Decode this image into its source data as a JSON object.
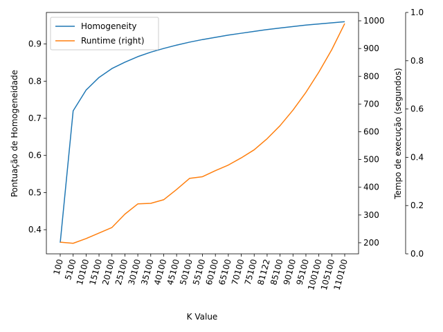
{
  "chart_data": {
    "type": "line",
    "categories": [
      "100",
      "5100",
      "10100",
      "15100",
      "20100",
      "25100",
      "30100",
      "35100",
      "40100",
      "45100",
      "50100",
      "55100",
      "60100",
      "65100",
      "70100",
      "75100",
      "81122",
      "85100",
      "90100",
      "95100",
      "100100",
      "105100",
      "110100"
    ],
    "xlabel": "K Value",
    "ylabel_left": "Pontuação de Homogeneidade",
    "ylabel_right": "Tempo de execução (segundos)",
    "ylim_left": [
      0.335,
      0.985
    ],
    "ylim_right": [
      160,
      1030
    ],
    "ylim_extra": [
      0.0,
      1.0
    ],
    "left_ticks": [
      "0.4",
      "0.5",
      "0.6",
      "0.7",
      "0.8",
      "0.9"
    ],
    "right_ticks": [
      "200",
      "300",
      "400",
      "500",
      "600",
      "700",
      "800",
      "900",
      "1000"
    ],
    "extra_ticks": [
      "0.0",
      "0.2",
      "0.4",
      "0.6",
      "0.8",
      "1.0"
    ],
    "legend_position": "upper-left",
    "series": [
      {
        "name": "Homogeneity",
        "axis": "left",
        "color": "#1f77b4",
        "values": [
          0.365,
          0.72,
          0.776,
          0.81,
          0.834,
          0.851,
          0.866,
          0.878,
          0.888,
          0.897,
          0.905,
          0.912,
          0.918,
          0.924,
          0.929,
          0.934,
          0.939,
          0.943,
          0.947,
          0.951,
          0.954,
          0.957,
          0.96
        ]
      },
      {
        "name": "Runtime (right)",
        "axis": "right",
        "color": "#ff7f0e",
        "values": [
          202,
          198,
          215,
          235,
          255,
          303,
          340,
          342,
          355,
          392,
          432,
          438,
          460,
          480,
          506,
          535,
          575,
          622,
          678,
          742,
          815,
          896,
          990
        ]
      }
    ]
  }
}
